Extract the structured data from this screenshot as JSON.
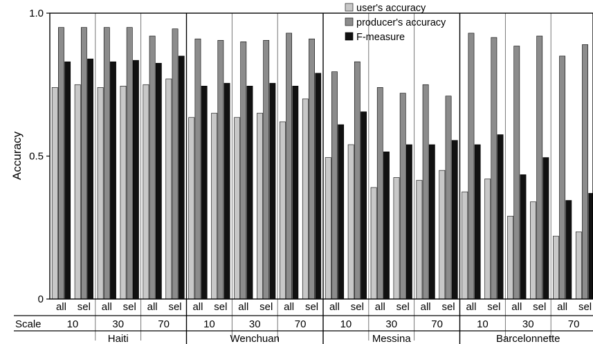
{
  "chart_data": {
    "type": "bar",
    "ylabel": "Accuracy",
    "ylim": [
      0,
      1.0
    ],
    "yticks": [
      "0",
      "0.5",
      "1.0"
    ],
    "grid": false,
    "legend_position": "top",
    "scale_row_label": "Scale",
    "groups": [
      "Haiti",
      "Wenchuan",
      "Messina",
      "Barcelonnette"
    ],
    "scales": [
      "10",
      "30",
      "70"
    ],
    "modes": [
      "all",
      "sel"
    ],
    "series": [
      {
        "name": "user's accuracy",
        "color": "#c8c8c8",
        "values": [
          0.74,
          0.75,
          0.74,
          0.745,
          0.75,
          0.77,
          0.635,
          0.65,
          0.635,
          0.65,
          0.62,
          0.7,
          0.495,
          0.54,
          0.39,
          0.425,
          0.415,
          0.45,
          0.375,
          0.42,
          0.29,
          0.34,
          0.22,
          0.235
        ]
      },
      {
        "name": "producer's accuracy",
        "color": "#8c8c8c",
        "values": [
          0.95,
          0.95,
          0.95,
          0.95,
          0.92,
          0.945,
          0.91,
          0.905,
          0.9,
          0.905,
          0.93,
          0.91,
          0.795,
          0.83,
          0.74,
          0.72,
          0.75,
          0.71,
          0.93,
          0.915,
          0.885,
          0.92,
          0.85,
          0.89
        ]
      },
      {
        "name": "F-measure",
        "color": "#111111",
        "values": [
          0.83,
          0.84,
          0.83,
          0.835,
          0.825,
          0.85,
          0.745,
          0.755,
          0.745,
          0.755,
          0.745,
          0.79,
          0.61,
          0.655,
          0.515,
          0.54,
          0.54,
          0.555,
          0.54,
          0.575,
          0.435,
          0.495,
          0.345,
          0.37
        ]
      }
    ]
  }
}
